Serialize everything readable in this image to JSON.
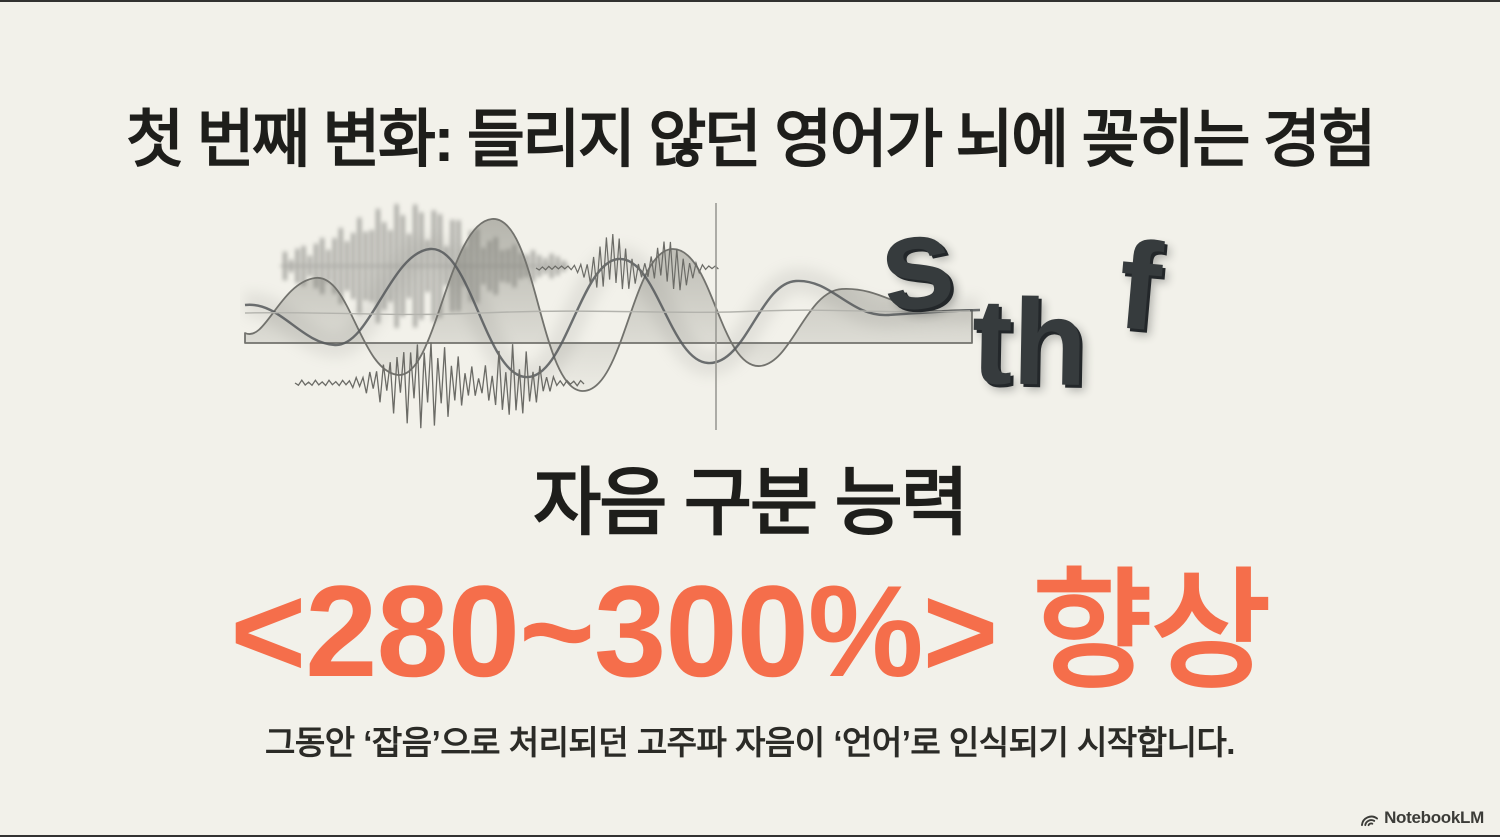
{
  "slide": {
    "title": "첫 번째 변화: 들리지 않던 영어가 뇌에 꽂히는 경험",
    "phonemes": {
      "s": "s",
      "th": "th",
      "f": "f"
    },
    "metric_label": "자음 구분 능력",
    "highlight": "<280~300%> 향상",
    "caption": "그동안 ‘잡음’으로 처리되던 고주파 자음이 ‘언어’로 인식되기 시작합니다.",
    "watermark": "NotebookLM"
  },
  "colors": {
    "background": "#F2F1EA",
    "text-primary": "#1E1E1B",
    "accent-orange": "#F56E4B",
    "letter-charcoal": "#363B3D",
    "caption-color": "#2B2B27",
    "watermark-color": "#3C3C38",
    "wave-gray": "#8F8F8A"
  }
}
